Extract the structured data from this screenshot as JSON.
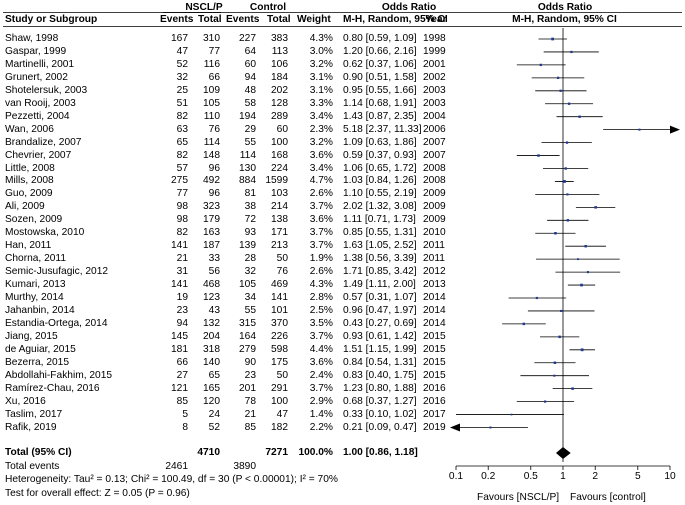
{
  "chart_data": {
    "type": "forest",
    "headers": {
      "group1": "NSCL/P",
      "group2": "Control",
      "study": "Study or Subgroup",
      "events": "Events",
      "total": "Total",
      "weight": "Weight",
      "or_title": "Odds Ratio",
      "or_sub": "M-H, Random, 95% CI",
      "year": "Year",
      "plot_title": "Odds Ratio",
      "plot_sub": "M-H, Random, 95% CI"
    },
    "studies": [
      {
        "study": "Shaw, 1998",
        "e1": "167",
        "t1": "310",
        "e2": "227",
        "t2": "383",
        "w": "4.3%",
        "ci": "0.80 [0.59, 1.09]",
        "year": "1998",
        "or": 0.8,
        "lo": 0.59,
        "hi": 1.09
      },
      {
        "study": "Gaspar, 1999",
        "e1": "47",
        "t1": "77",
        "e2": "64",
        "t2": "113",
        "w": "3.0%",
        "ci": "1.20 [0.66, 2.16]",
        "year": "1999",
        "or": 1.2,
        "lo": 0.66,
        "hi": 2.16
      },
      {
        "study": "Martinelli, 2001",
        "e1": "52",
        "t1": "116",
        "e2": "60",
        "t2": "106",
        "w": "3.2%",
        "ci": "0.62 [0.37, 1.06]",
        "year": "2001",
        "or": 0.62,
        "lo": 0.37,
        "hi": 1.06
      },
      {
        "study": "Grunert, 2002",
        "e1": "32",
        "t1": "66",
        "e2": "94",
        "t2": "184",
        "w": "3.1%",
        "ci": "0.90 [0.51, 1.58]",
        "year": "2002",
        "or": 0.9,
        "lo": 0.51,
        "hi": 1.58
      },
      {
        "study": "Shotelersuk, 2003",
        "e1": "25",
        "t1": "109",
        "e2": "48",
        "t2": "202",
        "w": "3.1%",
        "ci": "0.95 [0.55, 1.66]",
        "year": "2003",
        "or": 0.95,
        "lo": 0.55,
        "hi": 1.66
      },
      {
        "study": "van Rooij, 2003",
        "e1": "51",
        "t1": "105",
        "e2": "58",
        "t2": "128",
        "w": "3.3%",
        "ci": "1.14 [0.68, 1.91]",
        "year": "2003",
        "or": 1.14,
        "lo": 0.68,
        "hi": 1.91
      },
      {
        "study": "Pezzetti, 2004",
        "e1": "82",
        "t1": "110",
        "e2": "194",
        "t2": "289",
        "w": "3.4%",
        "ci": "1.43 [0.87, 2.35]",
        "year": "2004",
        "or": 1.43,
        "lo": 0.87,
        "hi": 2.35
      },
      {
        "study": "Wan, 2006",
        "e1": "63",
        "t1": "76",
        "e2": "29",
        "t2": "60",
        "w": "2.3%",
        "ci": "5.18 [2.37, 11.33]",
        "year": "2006",
        "or": 5.18,
        "lo": 2.37,
        "hi": 11.33
      },
      {
        "study": "Brandalize, 2007",
        "e1": "65",
        "t1": "114",
        "e2": "55",
        "t2": "100",
        "w": "3.2%",
        "ci": "1.09 [0.63, 1.86]",
        "year": "2007",
        "or": 1.09,
        "lo": 0.63,
        "hi": 1.86
      },
      {
        "study": "Chevrier, 2007",
        "e1": "82",
        "t1": "148",
        "e2": "114",
        "t2": "168",
        "w": "3.6%",
        "ci": "0.59 [0.37, 0.93]",
        "year": "2007",
        "or": 0.59,
        "lo": 0.37,
        "hi": 0.93
      },
      {
        "study": "Little, 2008",
        "e1": "57",
        "t1": "96",
        "e2": "130",
        "t2": "224",
        "w": "3.4%",
        "ci": "1.06 [0.65, 1.72]",
        "year": "2008",
        "or": 1.06,
        "lo": 0.65,
        "hi": 1.72
      },
      {
        "study": "Mills, 2008",
        "e1": "275",
        "t1": "492",
        "e2": "884",
        "t2": "1599",
        "w": "4.7%",
        "ci": "1.03 [0.84, 1.26]",
        "year": "2008",
        "or": 1.03,
        "lo": 0.84,
        "hi": 1.26
      },
      {
        "study": "Guo, 2009",
        "e1": "77",
        "t1": "96",
        "e2": "81",
        "t2": "103",
        "w": "2.6%",
        "ci": "1.10 [0.55, 2.19]",
        "year": "2009",
        "or": 1.1,
        "lo": 0.55,
        "hi": 2.19
      },
      {
        "study": "Ali, 2009",
        "e1": "98",
        "t1": "323",
        "e2": "38",
        "t2": "214",
        "w": "3.7%",
        "ci": "2.02 [1.32, 3.08]",
        "year": "2009",
        "or": 2.02,
        "lo": 1.32,
        "hi": 3.08
      },
      {
        "study": "Sozen, 2009",
        "e1": "98",
        "t1": "179",
        "e2": "72",
        "t2": "138",
        "w": "3.6%",
        "ci": "1.11 [0.71, 1.73]",
        "year": "2009",
        "or": 1.11,
        "lo": 0.71,
        "hi": 1.73
      },
      {
        "study": "Mostowska, 2010",
        "e1": "82",
        "t1": "163",
        "e2": "93",
        "t2": "171",
        "w": "3.7%",
        "ci": "0.85 [0.55, 1.31]",
        "year": "2010",
        "or": 0.85,
        "lo": 0.55,
        "hi": 1.31
      },
      {
        "study": "Han, 2011",
        "e1": "141",
        "t1": "187",
        "e2": "139",
        "t2": "213",
        "w": "3.7%",
        "ci": "1.63 [1.05, 2.52]",
        "year": "2011",
        "or": 1.63,
        "lo": 1.05,
        "hi": 2.52
      },
      {
        "study": "Chorna, 2011",
        "e1": "21",
        "t1": "33",
        "e2": "28",
        "t2": "50",
        "w": "1.9%",
        "ci": "1.38 [0.56, 3.39]",
        "year": "2011",
        "or": 1.38,
        "lo": 0.56,
        "hi": 3.39
      },
      {
        "study": "Semic-Jusufagic, 2012",
        "e1": "31",
        "t1": "56",
        "e2": "32",
        "t2": "76",
        "w": "2.6%",
        "ci": "1.71 [0.85, 3.42]",
        "year": "2012",
        "or": 1.71,
        "lo": 0.85,
        "hi": 3.42
      },
      {
        "study": "Kumari, 2013",
        "e1": "141",
        "t1": "468",
        "e2": "105",
        "t2": "469",
        "w": "4.3%",
        "ci": "1.49 [1.11, 2.00]",
        "year": "2013",
        "or": 1.49,
        "lo": 1.11,
        "hi": 2.0
      },
      {
        "study": "Murthy, 2014",
        "e1": "19",
        "t1": "123",
        "e2": "34",
        "t2": "141",
        "w": "2.8%",
        "ci": "0.57 [0.31, 1.07]",
        "year": "2014",
        "or": 0.57,
        "lo": 0.31,
        "hi": 1.07
      },
      {
        "study": "Jahanbin, 2014",
        "e1": "23",
        "t1": "43",
        "e2": "55",
        "t2": "101",
        "w": "2.5%",
        "ci": "0.96 [0.47, 1.97]",
        "year": "2014",
        "or": 0.96,
        "lo": 0.47,
        "hi": 1.97
      },
      {
        "study": "Estandia-Ortega, 2014",
        "e1": "94",
        "t1": "132",
        "e2": "315",
        "t2": "370",
        "w": "3.5%",
        "ci": "0.43 [0.27, 0.69]",
        "year": "2014",
        "or": 0.43,
        "lo": 0.27,
        "hi": 0.69
      },
      {
        "study": "Jiang, 2015",
        "e1": "145",
        "t1": "204",
        "e2": "164",
        "t2": "226",
        "w": "3.7%",
        "ci": "0.93 [0.61, 1.42]",
        "year": "2015",
        "or": 0.93,
        "lo": 0.61,
        "hi": 1.42
      },
      {
        "study": "de Aguiar, 2015",
        "e1": "181",
        "t1": "318",
        "e2": "279",
        "t2": "598",
        "w": "4.4%",
        "ci": "1.51 [1.15, 1.99]",
        "year": "2015",
        "or": 1.51,
        "lo": 1.15,
        "hi": 1.99
      },
      {
        "study": "Bezerra, 2015",
        "e1": "66",
        "t1": "140",
        "e2": "90",
        "t2": "175",
        "w": "3.6%",
        "ci": "0.84 [0.54, 1.31]",
        "year": "2015",
        "or": 0.84,
        "lo": 0.54,
        "hi": 1.31
      },
      {
        "study": "Abdollahi-Fakhim, 2015",
        "e1": "27",
        "t1": "65",
        "e2": "23",
        "t2": "50",
        "w": "2.4%",
        "ci": "0.83 [0.40, 1.75]",
        "year": "2015",
        "or": 0.83,
        "lo": 0.4,
        "hi": 1.75
      },
      {
        "study": "Ramírez-Chau, 2016",
        "e1": "121",
        "t1": "165",
        "e2": "201",
        "t2": "291",
        "w": "3.7%",
        "ci": "1.23 [0.80, 1.88]",
        "year": "2016",
        "or": 1.23,
        "lo": 0.8,
        "hi": 1.88
      },
      {
        "study": "Xu, 2016",
        "e1": "85",
        "t1": "120",
        "e2": "78",
        "t2": "100",
        "w": "2.9%",
        "ci": "0.68 [0.37, 1.27]",
        "year": "2016",
        "or": 0.68,
        "lo": 0.37,
        "hi": 1.27
      },
      {
        "study": "Taslim, 2017",
        "e1": "5",
        "t1": "24",
        "e2": "21",
        "t2": "47",
        "w": "1.4%",
        "ci": "0.33 [0.10, 1.02]",
        "year": "2017",
        "or": 0.33,
        "lo": 0.1,
        "hi": 1.02
      },
      {
        "study": "Rafik, 2019",
        "e1": "8",
        "t1": "52",
        "e2": "85",
        "t2": "182",
        "w": "2.2%",
        "ci": "0.21 [0.09, 0.47]",
        "year": "2019",
        "or": 0.21,
        "lo": 0.09,
        "hi": 0.47
      }
    ],
    "total": {
      "label": "Total (95% CI)",
      "t1": "4710",
      "t2": "7271",
      "w": "100.0%",
      "ci": "1.00 [0.86, 1.18]",
      "or": 1.0,
      "lo": 0.86,
      "hi": 1.18
    },
    "total_events": {
      "label": "Total events",
      "e1": "2461",
      "e2": "3890"
    },
    "heterogeneity": "Heterogeneity: Tau² = 0.13; Chi² = 100.49, df = 30 (P < 0.00001); I² = 70%",
    "overall_effect": "Test for overall effect: Z = 0.05 (P = 0.96)",
    "axis": {
      "scale": "log",
      "range": [
        0.1,
        10
      ],
      "ticks": [
        0.1,
        0.2,
        0.5,
        1,
        2,
        5,
        10
      ],
      "tick_labels": [
        "0.1",
        "0.2",
        "0.5",
        "1",
        "2",
        "5",
        "10"
      ],
      "label_left": "Favours [NSCL/P]",
      "label_right": "Favours [control]"
    },
    "colors": {
      "marker": "#1f3a93",
      "line": "#000000",
      "summary": "#000000"
    }
  }
}
